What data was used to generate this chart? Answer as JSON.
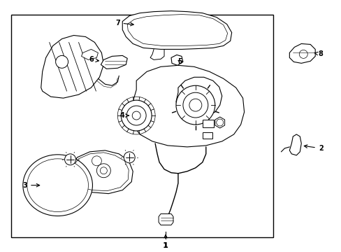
{
  "bg_color": "#ffffff",
  "line_color": "#000000",
  "fig_width": 4.89,
  "fig_height": 3.6,
  "dpi": 100,
  "bottom_label": "1"
}
